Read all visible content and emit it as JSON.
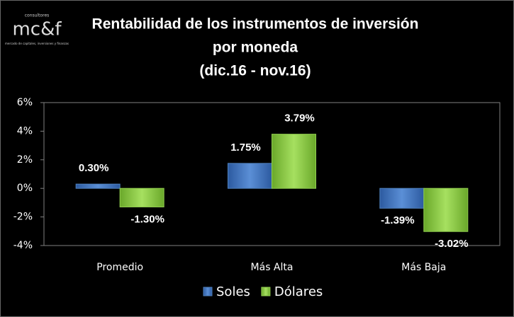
{
  "logo": {
    "name": "mc&f",
    "caption": "consultores",
    "tagline": "mercado de capitales, inversiones y finanzas"
  },
  "chart_data": {
    "type": "bar",
    "title": [
      "Rentabilidad de los instrumentos de inversión",
      "por moneda",
      "(dic.16 - nov.16)"
    ],
    "categories": [
      "Promedio",
      "Más Alta",
      "Más Baja"
    ],
    "series": [
      {
        "name": "Soles",
        "color": "#4f81bd",
        "values": [
          0.3,
          1.75,
          -1.39
        ],
        "value_labels": [
          "0.30%",
          "1.75%",
          "-1.39%"
        ]
      },
      {
        "name": "Dólares",
        "color": "#92d050",
        "values": [
          -1.3,
          3.79,
          -3.02
        ],
        "value_labels": [
          "-1.30%",
          "3.79%",
          "-3.02%"
        ]
      }
    ],
    "ylim": [
      -4,
      6
    ],
    "yticks": [
      {
        "value": -4,
        "label": "-4%"
      },
      {
        "value": -2,
        "label": "-2%"
      },
      {
        "value": 0,
        "label": "0%"
      },
      {
        "value": 2,
        "label": "2%"
      },
      {
        "value": 4,
        "label": "4%"
      },
      {
        "value": 6,
        "label": "6%"
      }
    ],
    "grid": false,
    "legend": "bottom"
  }
}
